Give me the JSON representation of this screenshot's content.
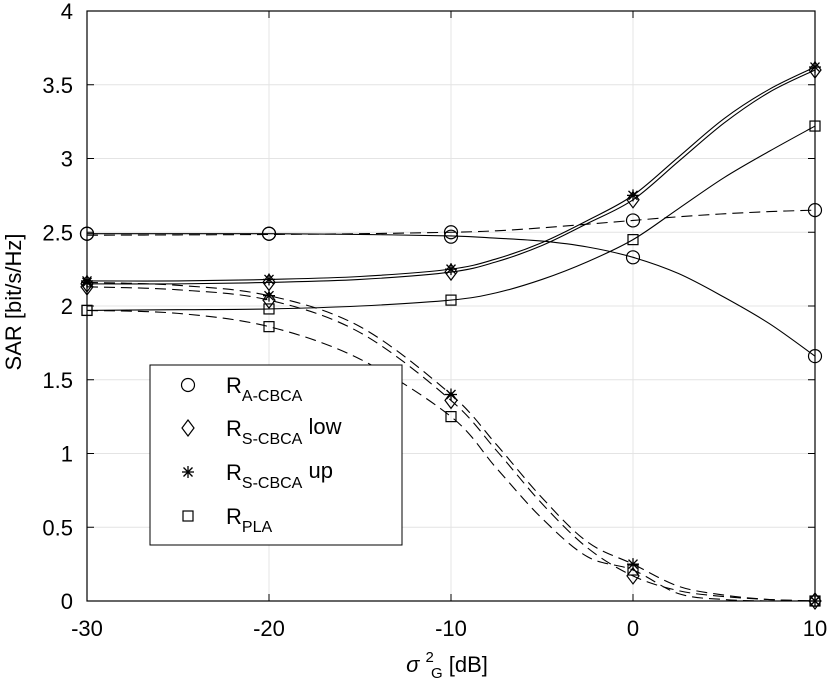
{
  "chart_data": {
    "type": "line",
    "title": "",
    "xlabel_symbol": "σ",
    "xlabel_sub": "G",
    "xlabel_sup": "2",
    "xlabel_unit": " [dB]",
    "ylabel": "SAR [bit/s/Hz]",
    "xlim": [
      -30,
      10
    ],
    "ylim": [
      0,
      4
    ],
    "xticks": [
      -30,
      -20,
      -10,
      0,
      10
    ],
    "xtick_labels": [
      "-30",
      "-20",
      "-10",
      "0",
      "10"
    ],
    "yticks": [
      0,
      0.5,
      1,
      1.5,
      2,
      2.5,
      3,
      3.5,
      4
    ],
    "ytick_labels": [
      "0",
      "0.5",
      "1",
      "1.5",
      "2",
      "2.5",
      "3",
      "3.5",
      "4"
    ],
    "grid": true,
    "legend_position": "center-left",
    "legend": [
      {
        "main": "R",
        "sub": "A-CBCA",
        "suffix": "",
        "marker": "circle"
      },
      {
        "main": "R",
        "sub": "S-CBCA",
        "suffix": " low",
        "marker": "diamond"
      },
      {
        "main": "R",
        "sub": "S-CBCA",
        "suffix": " up",
        "marker": "asterisk"
      },
      {
        "main": "R",
        "sub": "PLA",
        "suffix": "",
        "marker": "square"
      }
    ],
    "series": [
      {
        "name": "R_A-CBCA (solid)",
        "marker": "circle",
        "style": "solid",
        "curve_x": [
          -30,
          -25,
          -20,
          -15,
          -10,
          -7.5,
          -5,
          -2.5,
          0,
          2.5,
          5,
          7.5,
          10
        ],
        "curve_y": [
          2.49,
          2.49,
          2.49,
          2.485,
          2.475,
          2.46,
          2.44,
          2.4,
          2.33,
          2.22,
          2.06,
          1.88,
          1.66
        ],
        "marker_x": [
          -30,
          -20,
          -10,
          0,
          10
        ],
        "marker_y": [
          2.49,
          2.49,
          2.47,
          2.33,
          1.66
        ]
      },
      {
        "name": "R_A-CBCA (dashed)",
        "marker": "circle",
        "style": "dashed",
        "curve_x": [
          -30,
          -25,
          -20,
          -15,
          -10,
          -7.5,
          -5,
          -2.5,
          0,
          2.5,
          5,
          7.5,
          10
        ],
        "curve_y": [
          2.48,
          2.482,
          2.485,
          2.49,
          2.5,
          2.51,
          2.53,
          2.555,
          2.58,
          2.605,
          2.625,
          2.64,
          2.65
        ],
        "marker_x": [
          -30,
          -20,
          -10,
          0,
          10
        ],
        "marker_y": [
          2.49,
          2.49,
          2.5,
          2.58,
          2.65
        ]
      },
      {
        "name": "R_S-CBCA low (solid)",
        "marker": "diamond",
        "style": "solid",
        "curve_x": [
          -30,
          -25,
          -20,
          -15,
          -10,
          -7.5,
          -5,
          -2.5,
          0,
          2.5,
          5,
          7.5,
          10
        ],
        "curve_y": [
          2.15,
          2.15,
          2.16,
          2.18,
          2.23,
          2.3,
          2.41,
          2.56,
          2.72,
          2.98,
          3.24,
          3.45,
          3.6
        ],
        "marker_x": [
          -30,
          -20,
          -10,
          0,
          10
        ],
        "marker_y": [
          2.15,
          2.16,
          2.23,
          2.72,
          3.6
        ]
      },
      {
        "name": "R_S-CBCA low (dashed)",
        "marker": "diamond",
        "style": "dashed",
        "curve_x": [
          -30,
          -25,
          -20,
          -15,
          -10,
          -7.5,
          -5,
          -2.5,
          0,
          2.5,
          5,
          7.5,
          10
        ],
        "curve_y": [
          2.13,
          2.11,
          2.04,
          1.82,
          1.36,
          1.02,
          0.66,
          0.36,
          0.17,
          0.07,
          0.03,
          0.01,
          0.0
        ],
        "marker_x": [
          -30,
          -20,
          -10,
          0,
          10
        ],
        "marker_y": [
          2.13,
          2.04,
          1.36,
          0.17,
          0.0
        ]
      },
      {
        "name": "R_S-CBCA up (solid)",
        "marker": "asterisk",
        "style": "solid",
        "curve_x": [
          -30,
          -25,
          -20,
          -15,
          -10,
          -7.5,
          -5,
          -2.5,
          0,
          2.5,
          5,
          7.5,
          10
        ],
        "curve_y": [
          2.17,
          2.17,
          2.18,
          2.2,
          2.25,
          2.32,
          2.43,
          2.58,
          2.75,
          3.01,
          3.27,
          3.47,
          3.62
        ],
        "marker_x": [
          -30,
          -20,
          -10,
          0,
          10
        ],
        "marker_y": [
          2.17,
          2.18,
          2.25,
          2.75,
          3.62
        ]
      },
      {
        "name": "R_S-CBCA up (dashed)",
        "marker": "asterisk",
        "style": "dashed",
        "curve_x": [
          -30,
          -25,
          -20,
          -15,
          -10,
          -7.5,
          -5,
          -2.5,
          0,
          2.5,
          5,
          7.5,
          10
        ],
        "curve_y": [
          2.16,
          2.14,
          2.07,
          1.86,
          1.4,
          1.06,
          0.7,
          0.4,
          0.25,
          0.1,
          0.04,
          0.01,
          0.0
        ],
        "marker_x": [
          -30,
          -20,
          -10,
          0,
          10
        ],
        "marker_y": [
          2.16,
          2.07,
          1.4,
          0.25,
          0.0
        ]
      },
      {
        "name": "R_PLA (solid)",
        "marker": "square",
        "style": "solid",
        "curve_x": [
          -30,
          -25,
          -20,
          -15,
          -10,
          -7.5,
          -5,
          -2.5,
          0,
          2.5,
          5,
          7.5,
          10
        ],
        "curve_y": [
          1.97,
          1.975,
          1.98,
          2.0,
          2.04,
          2.09,
          2.18,
          2.3,
          2.45,
          2.66,
          2.87,
          3.05,
          3.22
        ],
        "marker_x": [
          -30,
          -20,
          -10,
          0,
          10
        ],
        "marker_y": [
          1.97,
          1.98,
          2.04,
          2.45,
          3.22
        ]
      },
      {
        "name": "R_PLA (dashed)",
        "marker": "square",
        "style": "dashed",
        "curve_x": [
          -30,
          -25,
          -20,
          -15,
          -10,
          -7.5,
          -5,
          -2.5,
          0,
          2.5,
          5,
          7.5,
          10
        ],
        "curve_y": [
          1.97,
          1.95,
          1.86,
          1.64,
          1.25,
          0.9,
          0.56,
          0.3,
          0.21,
          0.05,
          0.01,
          0.0,
          0.0
        ],
        "marker_x": [
          -30,
          -20,
          -10,
          0,
          10
        ],
        "marker_y": [
          1.97,
          1.86,
          1.25,
          0.21,
          0.0
        ]
      }
    ]
  }
}
